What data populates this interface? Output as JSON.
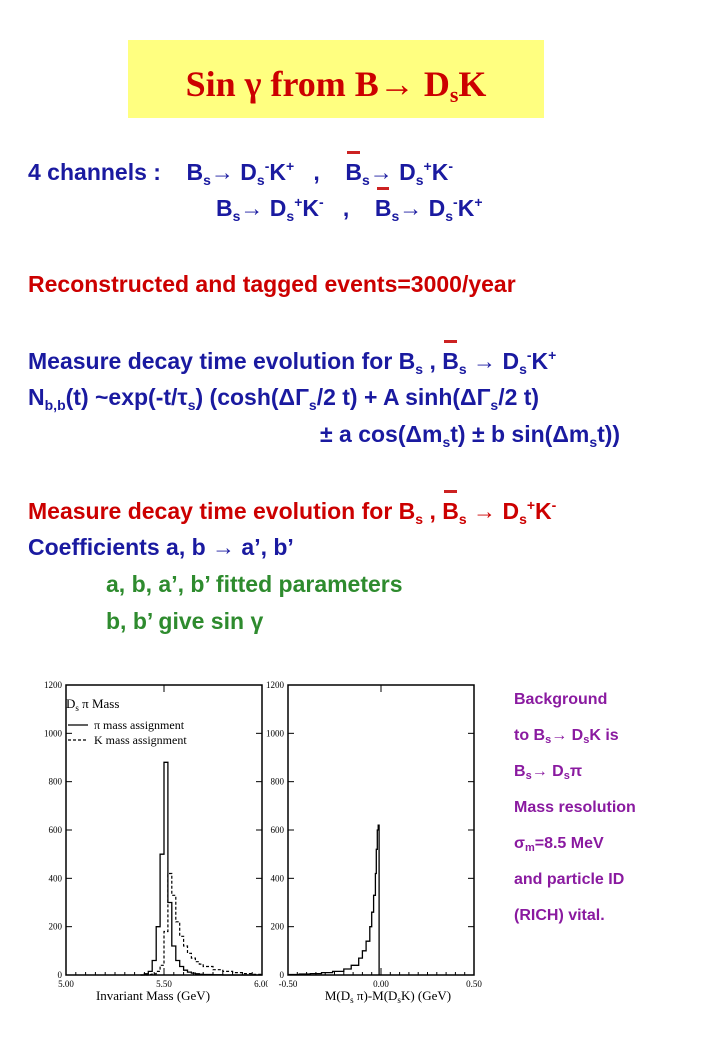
{
  "title": {
    "pre": "Sin ",
    "gamma": "γ",
    "from": " from B",
    "arrow": "→ D",
    "s": "s",
    "k": "K"
  },
  "channels": {
    "label": "4 channels :",
    "c1": "B",
    "c1s": "s",
    "c1a": "→ D",
    "c1ds": "s",
    "c1m": "-",
    "c1k": "K",
    "c1p": "+",
    "sep": ",",
    "c2": "B",
    "c2s": "s",
    "c2a": "→ D",
    "c2ds": "s",
    "c2p": "+",
    "c2k": "K",
    "c2m": "-",
    "c3": "B",
    "c3s": "s",
    "c3a": "→ D",
    "c3ds": "s",
    "c3p": "+",
    "c3k": "K",
    "c3m": "-",
    "c4": "B",
    "c4s": "s",
    "c4a": "→ D",
    "c4ds": "s",
    "c4m": "-",
    "c4k": "K",
    "c4p": "+"
  },
  "reconstructed": "Reconstructed and tagged events=3000/year",
  "measure1": {
    "text": "Measure decay time evolution for B",
    "s": "s",
    "comma": " , ",
    "b": "B",
    "s2": "s",
    "arrow": " → D",
    "ds": "s",
    "m": "-",
    "k": "K",
    "p": "+"
  },
  "formula1": {
    "n": "N",
    "sub": "b,b",
    "rest": "(t) ~exp(-t/τ",
    "tau_s": "s",
    "rest2": ") (cosh(ΔΓ",
    "g_s": "s",
    "rest3": "/2 t)  + A sinh(ΔΓ",
    "g_s2": "s",
    "rest4": "/2 t)"
  },
  "formula2": {
    "a": "± a cos(Δm",
    "s": "s",
    "b": "t) ±  b sin(Δm",
    "s2": "s",
    "c": "t))"
  },
  "measure2": {
    "text": "Measure decay time evolution for B",
    "s": "s",
    "comma": " , ",
    "b": "B",
    "s2": "s",
    "arrow": " → D",
    "ds": "s",
    "p": "+",
    "k": "K",
    "m": "-"
  },
  "coefficients": "Coefficients   a, b  →  a’, b’",
  "fitted": "a, b, a’, b’   fitted parameters",
  "give": {
    "text": "b, b’ give  sin ",
    "gamma": "γ"
  },
  "sidenote": {
    "l1": "Background",
    "l2a": "to B",
    "l2s": "s",
    "l2b": "→ D",
    "l2ds": "s",
    "l2c": "K is",
    "l3a": "B",
    "l3s": "s",
    "l3b": "→ D",
    "l3ds": "s",
    "l3c": "π",
    "l4": "Mass resolution",
    "l5a": "σ",
    "l5s": "m",
    "l5b": "=8.5 MeV",
    "l6": "and particle ID",
    "l7": "(RICH) vital."
  },
  "chart_data": [
    {
      "type": "line",
      "title": "",
      "xlabel": "Invariant Mass (GeV)",
      "ylabel": "",
      "xlim": [
        5.0,
        6.0
      ],
      "ylim": [
        0,
        1200
      ],
      "xticks": [
        "5.00",
        "5.50",
        "6.00"
      ],
      "yticks": [
        "0",
        "200",
        "400",
        "600",
        "800",
        "1000",
        "1200"
      ],
      "legend": {
        "head": "D",
        "head_sub": "s",
        "head_rest": " π   Mass",
        "items": [
          "π mass assignment",
          "K mass assignment"
        ],
        "placement": "top-left"
      },
      "x": [
        5.38,
        5.4,
        5.42,
        5.44,
        5.46,
        5.48,
        5.5,
        5.52,
        5.54,
        5.56,
        5.58,
        5.6,
        5.62,
        5.64,
        5.66,
        5.68,
        5.7,
        5.75,
        5.8,
        5.85,
        5.9,
        5.95,
        6.0
      ],
      "series": [
        {
          "name": "π mass assignment",
          "values": [
            0,
            5,
            15,
            60,
            200,
            500,
            880,
            300,
            120,
            60,
            35,
            20,
            12,
            8,
            5,
            3,
            2,
            1,
            0,
            0,
            0,
            0,
            0
          ]
        },
        {
          "name": "K mass assignment",
          "values": [
            0,
            0,
            2,
            5,
            15,
            40,
            180,
            420,
            330,
            220,
            160,
            120,
            90,
            70,
            55,
            45,
            35,
            22,
            15,
            10,
            6,
            3,
            1
          ]
        }
      ]
    },
    {
      "type": "line",
      "title": "",
      "xlabel": "M(D",
      "xlabel_s": "s",
      "xlabel_b": " π)-M(D",
      "xlabel_s2": "s",
      "xlabel_c": "K) (GeV)",
      "ylabel": "",
      "xlim": [
        -0.5,
        0.5
      ],
      "ylim": [
        0,
        1200
      ],
      "xticks": [
        "-0.50",
        "0.00",
        "0.50"
      ],
      "yticks": [
        "0",
        "200",
        "400",
        "600",
        "800",
        "1000",
        "1200"
      ],
      "x": [
        -0.5,
        -0.44,
        -0.38,
        -0.32,
        -0.26,
        -0.2,
        -0.16,
        -0.12,
        -0.1,
        -0.08,
        -0.06,
        -0.05,
        -0.04,
        -0.03,
        -0.025,
        -0.02,
        -0.015,
        -0.01
      ],
      "series": [
        {
          "name": "",
          "values": [
            2,
            4,
            6,
            10,
            15,
            25,
            40,
            70,
            100,
            140,
            200,
            260,
            330,
            420,
            520,
            600,
            620,
            0
          ]
        }
      ]
    }
  ]
}
